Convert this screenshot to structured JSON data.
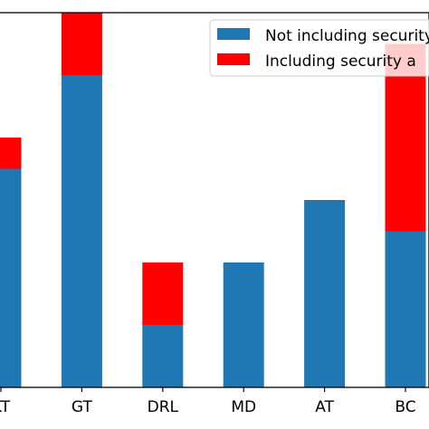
{
  "chart_data": {
    "type": "bar",
    "stacked": true,
    "categories": [
      "KT",
      "GT",
      "DRL",
      "MD",
      "AT",
      "BC"
    ],
    "series": [
      {
        "name": "Not including security",
        "color": "#1f77b4",
        "values": [
          7,
          10,
          2,
          4,
          6,
          5
        ]
      },
      {
        "name": "Including security a",
        "color": "#ff0000",
        "values": [
          1,
          2,
          2,
          0,
          0,
          6
        ]
      }
    ],
    "ylim": [
      0,
      12
    ],
    "legend_position": "top-right",
    "grid": false
  }
}
